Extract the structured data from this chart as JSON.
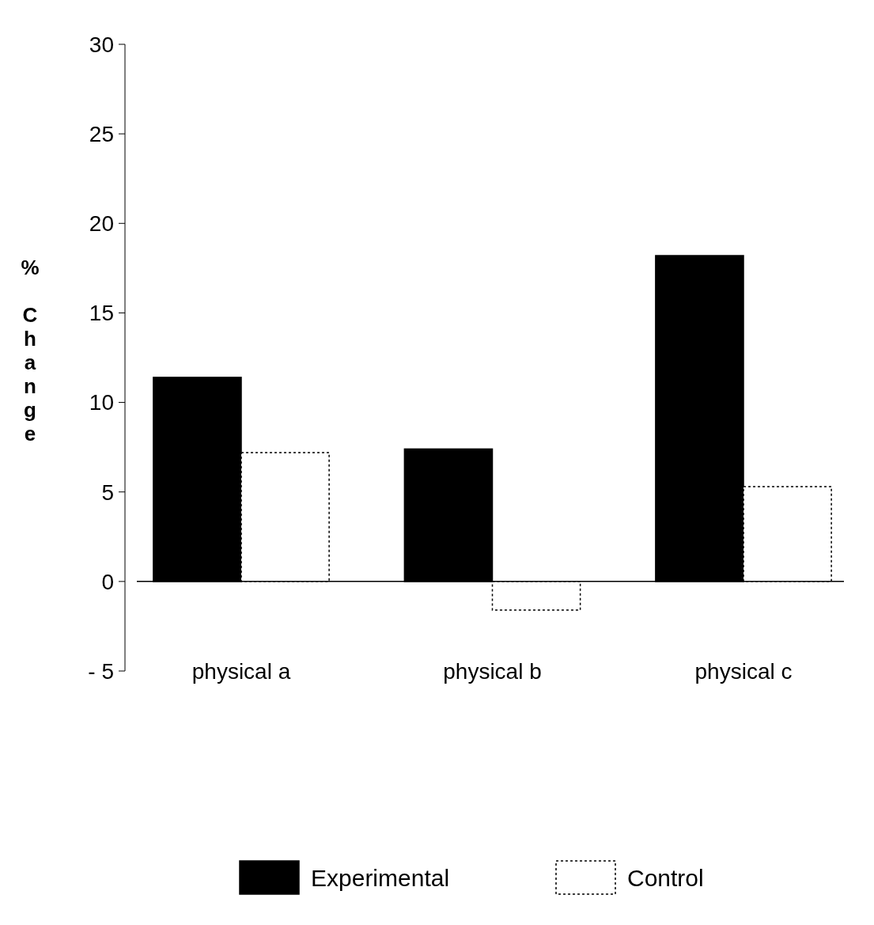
{
  "chart_data": {
    "type": "bar",
    "ylabel": "% Change",
    "categories": [
      "physical a",
      "physical b",
      "physical c"
    ],
    "series": [
      {
        "name": "Experimental",
        "color": "#000000",
        "values": [
          11.4,
          7.4,
          18.2
        ]
      },
      {
        "name": "Control",
        "color": "#ffffff",
        "values": [
          7.2,
          -1.6,
          5.3
        ]
      }
    ],
    "ylim": [
      -5,
      30
    ],
    "yticks": [
      {
        "value": -5,
        "label": "- 5"
      },
      0,
      5,
      10,
      15,
      20,
      25,
      30
    ],
    "legend": "bottom"
  }
}
